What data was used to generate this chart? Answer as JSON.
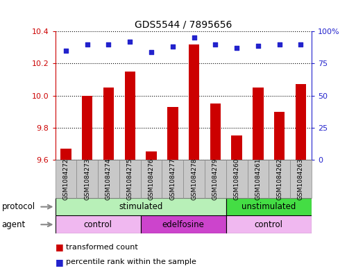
{
  "title": "GDS5544 / 7895656",
  "samples": [
    "GSM1084272",
    "GSM1084273",
    "GSM1084274",
    "GSM1084275",
    "GSM1084276",
    "GSM1084277",
    "GSM1084278",
    "GSM1084279",
    "GSM1084260",
    "GSM1084261",
    "GSM1084262",
    "GSM1084263"
  ],
  "bar_values": [
    9.67,
    10.0,
    10.05,
    10.15,
    9.65,
    9.93,
    10.32,
    9.95,
    9.75,
    10.05,
    9.9,
    10.07
  ],
  "dot_values": [
    85,
    90,
    90,
    92,
    84,
    88,
    95,
    90,
    87,
    89,
    90,
    90
  ],
  "ylim_left": [
    9.6,
    10.4
  ],
  "ylim_right": [
    0,
    100
  ],
  "yticks_left": [
    9.6,
    9.8,
    10.0,
    10.2,
    10.4
  ],
  "yticks_right": [
    0,
    25,
    50,
    75,
    100
  ],
  "bar_color": "#cc0000",
  "dot_color": "#2222cc",
  "protocol_groups": [
    {
      "label": "stimulated",
      "start": 0,
      "end": 8,
      "color": "#b8f0b8"
    },
    {
      "label": "unstimulated",
      "start": 8,
      "end": 12,
      "color": "#44dd44"
    }
  ],
  "agent_groups": [
    {
      "label": "control",
      "start": 0,
      "end": 4,
      "color": "#f0b8f0"
    },
    {
      "label": "edelfosine",
      "start": 4,
      "end": 8,
      "color": "#cc44cc"
    },
    {
      "label": "control",
      "start": 8,
      "end": 12,
      "color": "#f0b8f0"
    }
  ],
  "legend_items": [
    {
      "label": "transformed count",
      "color": "#cc0000"
    },
    {
      "label": "percentile rank within the sample",
      "color": "#2222cc"
    }
  ],
  "protocol_label": "protocol",
  "agent_label": "agent",
  "left_spine_color": "#cc0000",
  "right_spine_color": "#2222cc",
  "sample_box_color": "#c8c8c8",
  "sample_box_edge": "#888888"
}
